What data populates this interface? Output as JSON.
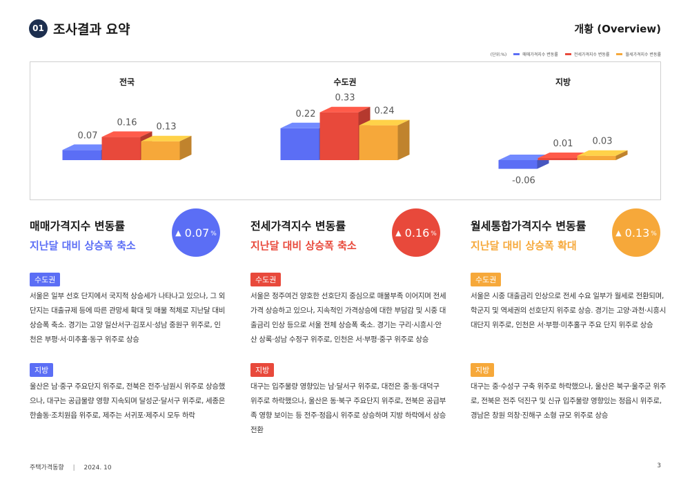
{
  "header": {
    "section_number": "01",
    "section_title": "조사결과 요약",
    "overview_label": "개황 (Overview)"
  },
  "legend": {
    "unit": "(단위:%)",
    "items": [
      {
        "label": "매매가격지수 변동률",
        "color": "#5b6ef5"
      },
      {
        "label": "전세가격지수 변동률",
        "color": "#e8493b"
      },
      {
        "label": "월세가격지수 변동률",
        "color": "#f6a83a"
      }
    ]
  },
  "chart_data": {
    "type": "bar",
    "categories": [
      "전국",
      "수도권",
      "지방"
    ],
    "series": [
      {
        "name": "매매가격지수 변동률",
        "values": [
          0.07,
          0.22,
          -0.06
        ],
        "color": "#5b6ef5"
      },
      {
        "name": "전세가격지수 변동률",
        "values": [
          0.16,
          0.33,
          0.01
        ],
        "color": "#e8493b"
      },
      {
        "name": "월세가격지수 변동률",
        "values": [
          0.13,
          0.24,
          0.03
        ],
        "color": "#f6a83a"
      }
    ],
    "unit": "(단위:%)"
  },
  "columns": [
    {
      "title": "매매가격지수 변동률",
      "subtitle": "지난달 대비 상승폭 축소",
      "value_arrow": "▲",
      "value": "0.07",
      "value_unit": "%",
      "color": "#5b6ef5",
      "blocks": [
        {
          "tag": "수도권",
          "text": "서울은 일부 선호 단지에서 국지적 상승세가 나타나고 있으나, 그 외 단지는 대출규제 등에 따른 관망세 확대 및 매물 적체로 지난달 대비 상승폭 축소. 경기는 고양 일산서구·김포시·성남 중원구 위주로, 인천은 부평·서·미추홀·동구 위주로 상승"
        },
        {
          "tag": "지방",
          "text": "울산은 남·중구 주요단지 위주로, 전북은 전주·남원시 위주로 상승했으나, 대구는 공급물량 영향 지속되며 달성군·달서구 위주로, 세종은 한솔동·조치원읍 위주로, 제주는 서귀포·제주시 모두 하락"
        }
      ]
    },
    {
      "title": "전세가격지수 변동률",
      "subtitle": "지난달 대비 상승폭 축소",
      "value_arrow": "▲",
      "value": "0.16",
      "value_unit": "%",
      "color": "#e8493b",
      "blocks": [
        {
          "tag": "수도권",
          "text": "서울은 정주여건 양호한 선호단지 중심으로 매물부족 이어지며 전세가격 상승하고 있으나, 지속적인 가격상승에 대한 부담감 및 시중 대출금리 인상 등으로 서울 전체 상승폭 축소. 경기는 구리·시흥시·안산 상록·성남 수정구 위주로, 인천은 서·부평·중구 위주로 상승"
        },
        {
          "tag": "지방",
          "text": "대구는 입주물량 영향있는 남·달서구 위주로, 대전은 중·동·대덕구 위주로 하락했으나, 울산은 동·북구 주요단지 위주로, 전북은 공급부족 영향 보이는 등 전주·정읍시 위주로 상승하며 지방 하락에서 상승 전환"
        }
      ]
    },
    {
      "title": "월세통합가격지수 변동률",
      "subtitle": "지난달 대비 상승폭 확대",
      "value_arrow": "▲",
      "value": "0.13",
      "value_unit": "%",
      "color": "#f6a83a",
      "blocks": [
        {
          "tag": "수도권",
          "text": "서울은 시중 대출금리 인상으로 전세 수요 일부가 월세로 전환되며, 학군지 및 역세권의 선호단지 위주로 상승. 경기는 고양·과천·시흥시 대단지 위주로, 인천은 서·부평·미추홀구 주요 단지 위주로 상승"
        },
        {
          "tag": "지방",
          "text": "대구는 중·수성구 구축 위주로 하락했으나, 울산은 북구·울주군 위주로, 전북은 전주 덕진구 및 신규 입주물량 영향있는 정읍시 위주로, 경남은 창원 의창·진해구 소형 규모 위주로 상승"
        }
      ]
    }
  ],
  "footer": {
    "publication": "주택가격동향",
    "date": "2024. 10",
    "page": "3"
  }
}
